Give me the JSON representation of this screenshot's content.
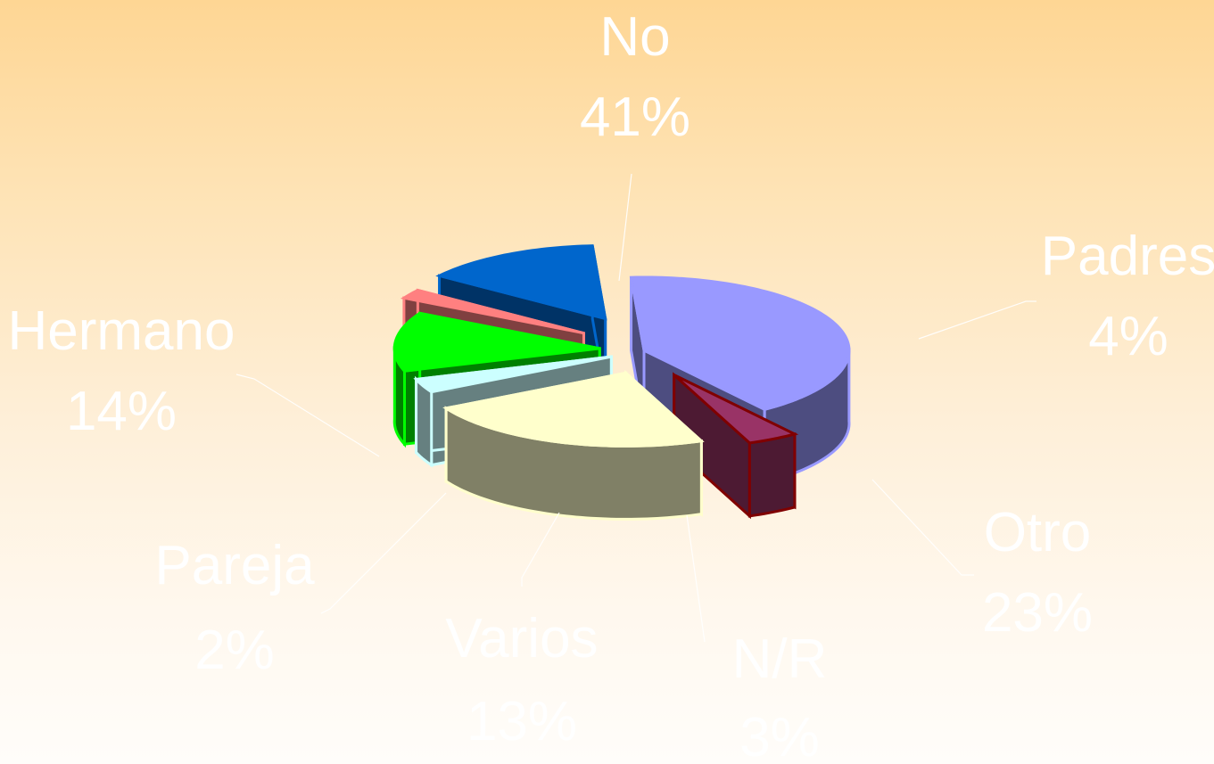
{
  "chart_data": {
    "type": "pie",
    "style": "3d-exploded",
    "categories": [
      "No",
      "Padres",
      "Otro",
      "N/R",
      "Varios",
      "Pareja",
      "Hermano"
    ],
    "values": [
      41,
      4,
      23,
      3,
      13,
      2,
      14
    ],
    "value_labels": [
      "41%",
      "4%",
      "23%",
      "3%",
      "13%",
      "2%",
      "14%"
    ],
    "colors": {
      "No": {
        "top": "#9999ff",
        "side": "#4d4d80",
        "edge": "#9999ff"
      },
      "Padres": {
        "top": "#993366",
        "side": "#4d1a33",
        "edge": "#800000"
      },
      "Otro": {
        "top": "#ffffcc",
        "side": "#808066",
        "edge": "#ffffcc"
      },
      "N/R": {
        "top": "#ccffff",
        "side": "#668080",
        "edge": "#ccffff"
      },
      "Varios": {
        "top": "#00ff00",
        "side": "#008000",
        "edge": "#00ff00"
      },
      "Pareja": {
        "top": "#ff8080",
        "side": "#804040",
        "edge": "#ff8080"
      },
      "Hermano": {
        "top": "#0066cc",
        "side": "#003366",
        "edge": "#0066cc"
      }
    },
    "label_color": "#ffffff",
    "legend": "none",
    "title": ""
  }
}
